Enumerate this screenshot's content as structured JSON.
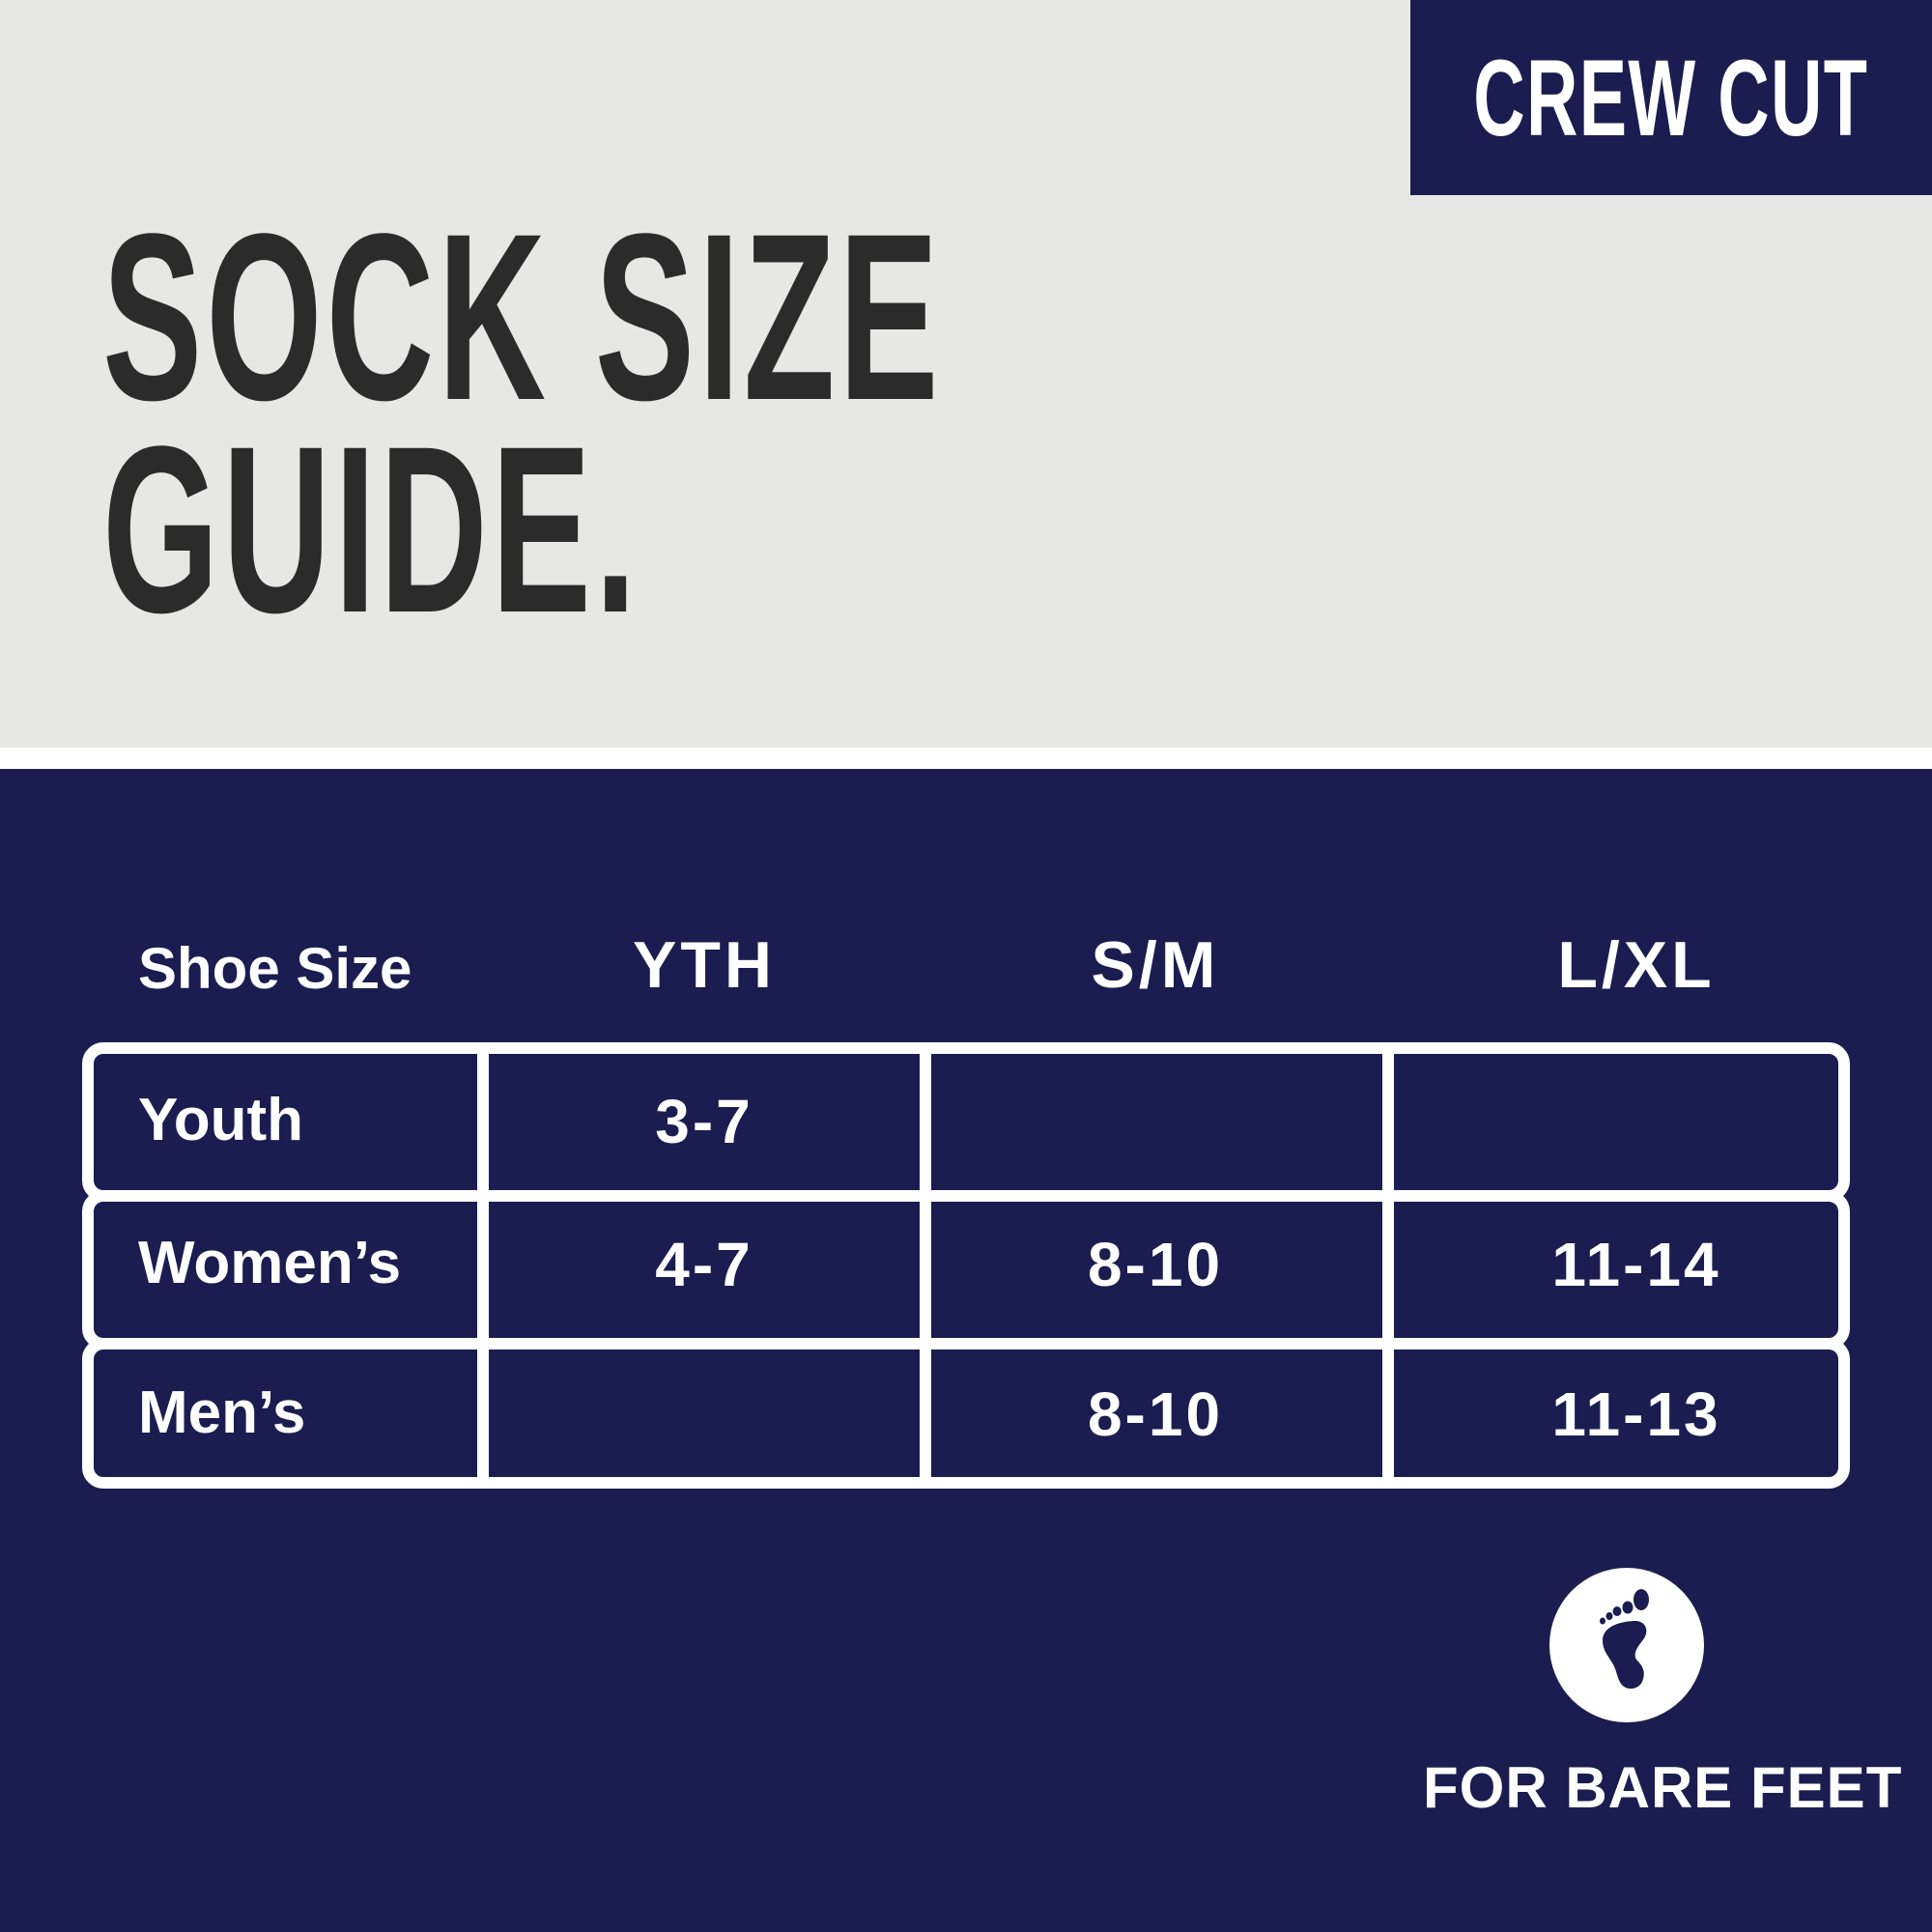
{
  "badge": "CREW CUT",
  "title": {
    "line1": "SOCK SIZE",
    "line2": "GUIDE."
  },
  "table": {
    "header": [
      "Shoe Size",
      "YTH",
      "S/M",
      "L/XL"
    ],
    "rows": [
      {
        "label": "Youth",
        "values": [
          "3-7",
          "",
          ""
        ]
      },
      {
        "label": "Women’s",
        "values": [
          "4-7",
          "8-10",
          "11-14"
        ]
      },
      {
        "label": "Men’s",
        "values": [
          "",
          "8-10",
          "11-13"
        ]
      }
    ]
  },
  "footer": {
    "icon": "bare-foot-icon",
    "text": "FOR BARE FEET"
  },
  "colors": {
    "navy": "#1b1d50",
    "gray": "#e7e7e5",
    "title": "#2b2b2b"
  }
}
